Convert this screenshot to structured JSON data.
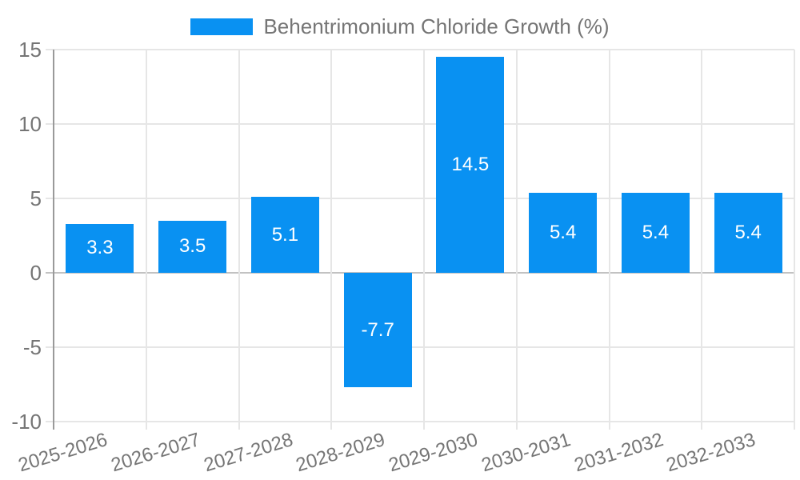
{
  "legend": {
    "swatch_icon": "series-color-swatch"
  },
  "chart_data": {
    "type": "bar",
    "categories": [
      "2025-2026",
      "2026-2027",
      "2027-2028",
      "2028-2029",
      "2029-2030",
      "2030-2031",
      "2031-2032",
      "2032-2033"
    ],
    "series": [
      {
        "name": "Behentrimonium Chloride Growth (%)",
        "values": [
          3.3,
          3.5,
          5.1,
          -7.7,
          14.5,
          5.4,
          5.4,
          5.4
        ]
      }
    ],
    "bar_value_labels": [
      "3.3",
      "3.5",
      "5.1",
      "-7.7",
      "14.5",
      "5.4",
      "5.4",
      "5.4"
    ],
    "y_ticks": [
      15,
      10,
      5,
      0,
      -5,
      -10
    ],
    "ylim": [
      -10,
      15
    ],
    "xlabel": "",
    "ylabel": "",
    "grid": true,
    "legend_position": "top",
    "colors": {
      "bar": "#0991f2",
      "gridline": "#e6e6e6",
      "zero_line": "#c2c2c2",
      "axis_line": "#9a9a9a",
      "tick_label": "#757575",
      "bar_label": "#ffffff",
      "background": "#ffffff"
    }
  }
}
